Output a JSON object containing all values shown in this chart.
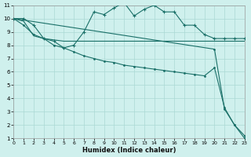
{
  "bg_color": "#cff0ed",
  "grid_color": "#aad8d4",
  "line_color": "#1a7068",
  "xlim": [
    0,
    23
  ],
  "ylim": [
    1,
    11
  ],
  "yticks": [
    1,
    2,
    3,
    4,
    5,
    6,
    7,
    8,
    9,
    10,
    11
  ],
  "xticks": [
    0,
    1,
    2,
    3,
    4,
    5,
    6,
    7,
    8,
    9,
    10,
    11,
    12,
    13,
    14,
    15,
    16,
    17,
    18,
    19,
    20,
    21,
    22,
    23
  ],
  "xlabel": "Humidex (Indice chaleur)",
  "line_flat_x": [
    0,
    1,
    2,
    3,
    4,
    5,
    6,
    7,
    8,
    9,
    10,
    11,
    12,
    13,
    14,
    15,
    16,
    17,
    18,
    19,
    20,
    21,
    22,
    23
  ],
  "line_flat_y": [
    10,
    9.8,
    8.7,
    8.5,
    8.4,
    8.3,
    8.3,
    8.3,
    8.3,
    8.3,
    8.3,
    8.3,
    8.3,
    8.3,
    8.3,
    8.3,
    8.3,
    8.3,
    8.3,
    8.3,
    8.3,
    8.3,
    8.3,
    8.3
  ],
  "line_wavy_x": [
    0,
    1,
    2,
    3,
    4,
    5,
    6,
    7,
    8,
    9,
    10,
    11,
    12,
    13,
    14,
    15,
    16,
    17,
    18,
    19,
    20,
    21,
    22,
    23
  ],
  "line_wavy_y": [
    10,
    10,
    9.5,
    8.5,
    8.3,
    7.8,
    8.0,
    9.0,
    10.5,
    10.3,
    10.8,
    11.2,
    10.2,
    10.7,
    11.0,
    10.5,
    10.5,
    9.5,
    9.5,
    8.8,
    8.5,
    8.5,
    8.5,
    8.5
  ],
  "line_diag_x": [
    0,
    1,
    2,
    3,
    4,
    5,
    6,
    7,
    8,
    9,
    10,
    11,
    12,
    13,
    14,
    15,
    16,
    17,
    18,
    19,
    20,
    21,
    22,
    23
  ],
  "line_diag_y": [
    10,
    9.5,
    8.8,
    8.5,
    8.0,
    7.8,
    7.5,
    7.2,
    7.0,
    6.8,
    6.7,
    6.5,
    6.4,
    6.3,
    6.2,
    6.1,
    6.0,
    5.9,
    5.8,
    5.7,
    6.3,
    3.3,
    2.0,
    1.2
  ],
  "line_sharp_x": [
    0,
    20,
    21,
    22,
    23
  ],
  "line_sharp_y": [
    10,
    7.7,
    3.2,
    2.0,
    1.0
  ],
  "marker_wavy": "+",
  "marker_flat": "+",
  "marker_diag": ".",
  "marker_sharp": "."
}
